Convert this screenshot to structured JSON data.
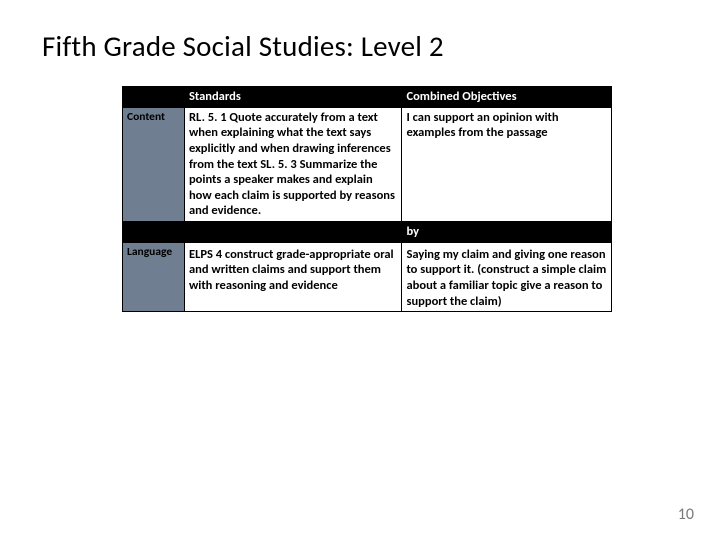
{
  "title": "Fifth Grade Social Studies: Level 2",
  "table": {
    "header": {
      "standards": "Standards",
      "objectives": "Combined Objectives"
    },
    "row1": {
      "label": "Content",
      "standards": "RL. 5. 1 Quote accurately from a text when explaining what the text says explicitly and when drawing inferences from the text SL. 5. 3 Summarize the points a speaker makes and explain how each claim is supported by reasons and evidence.",
      "objectives": "I can support an opinion with examples from the passage"
    },
    "divider": {
      "by": "by"
    },
    "row2": {
      "label": "Language",
      "standards": "ELPS 4 construct grade-appropriate oral and written claims and support them with reasoning and evidence",
      "objectives": "Saying my claim and giving one reason to support it. (construct a simple claim about a familiar topic give a reason to support the claim)"
    }
  },
  "page_number": "10",
  "colors": {
    "side_gray": "#6f7e90",
    "black": "#000000",
    "white": "#ffffff",
    "pagenum": "#7a7a7a"
  }
}
